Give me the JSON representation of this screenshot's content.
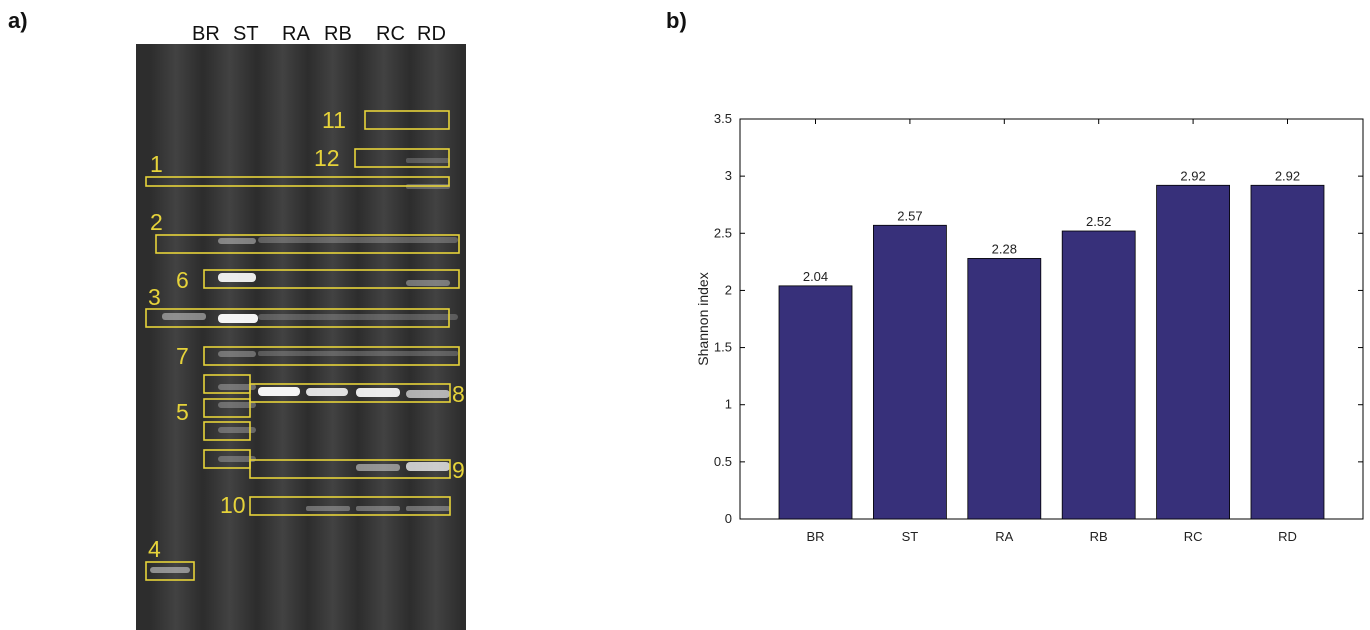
{
  "panel_a": {
    "label": "a)",
    "lanes": [
      "BR",
      "ST",
      "RA",
      "RB",
      "RC",
      "RD"
    ],
    "box_numbers": [
      "1",
      "2",
      "3",
      "4",
      "5",
      "6",
      "7",
      "8",
      "9",
      "10",
      "11",
      "12"
    ]
  },
  "panel_b": {
    "label": "b)"
  },
  "colors": {
    "bar": "#37307a",
    "box": "#e6d33a",
    "gel_bg": "#2b2b2b"
  },
  "chart_data": {
    "type": "bar",
    "categories": [
      "BR",
      "ST",
      "RA",
      "RB",
      "RC",
      "RD"
    ],
    "values": [
      2.04,
      2.57,
      2.28,
      2.52,
      2.92,
      2.92
    ],
    "data_labels": [
      "2.04",
      "2.57",
      "2.28",
      "2.52",
      "2.92",
      "2.92"
    ],
    "ylabel": "Shannon index",
    "xlabel": "",
    "ylim": [
      0,
      3.5
    ],
    "yticks": [
      "0",
      "0.5",
      "1",
      "1.5",
      "2",
      "2.5",
      "3",
      "3.5"
    ],
    "grid": false,
    "legend": "none"
  }
}
